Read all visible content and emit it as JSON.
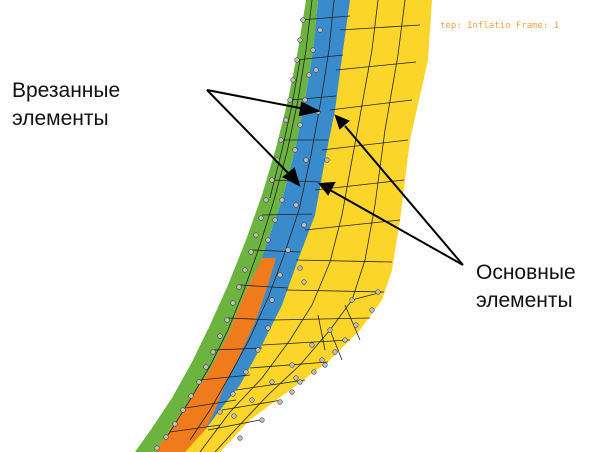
{
  "status": {
    "step_label": "tep: Inflatio",
    "frame_label": "Frame: 1"
  },
  "labels": {
    "embedded_line1": "Врезанные",
    "embedded_line2": "элементы",
    "main_line1": "Основные",
    "main_line2": "элементы"
  },
  "colors": {
    "green_layer": "#6cb33f",
    "orange_layer": "#f07b1c",
    "blue_layer": "#3a8bcc",
    "yellow_layer": "#fbd52a",
    "mesh_line": "#222222",
    "node_fill": "#bfbfbf",
    "status_text": "#f0a24a"
  }
}
